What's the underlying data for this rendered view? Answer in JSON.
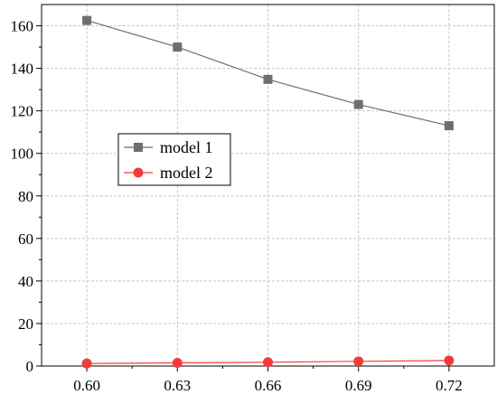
{
  "chart_data": {
    "type": "line",
    "title": "",
    "xlabel": "",
    "ylabel": "",
    "x": [
      0.6,
      0.63,
      0.66,
      0.69,
      0.72
    ],
    "x_tick_labels": [
      "0.60",
      "0.63",
      "0.66",
      "0.69",
      "0.72"
    ],
    "xlim": [
      0.585,
      0.735
    ],
    "y_ticks": [
      0,
      20,
      40,
      60,
      80,
      100,
      120,
      140,
      160
    ],
    "y_tick_labels": [
      "0",
      "20",
      "40",
      "60",
      "80",
      "100",
      "120",
      "140",
      "160"
    ],
    "ylim": [
      0,
      170
    ],
    "grid": true,
    "legend_position": "center-left",
    "series": [
      {
        "name": "model 1",
        "values": [
          162.5,
          150.0,
          134.8,
          123.0,
          113.0
        ],
        "color": "#6e6e6e",
        "marker": "square"
      },
      {
        "name": "model 2",
        "values": [
          1.2,
          1.5,
          1.8,
          2.2,
          2.6
        ],
        "color": "#f23c3c",
        "marker": "circle"
      }
    ]
  }
}
